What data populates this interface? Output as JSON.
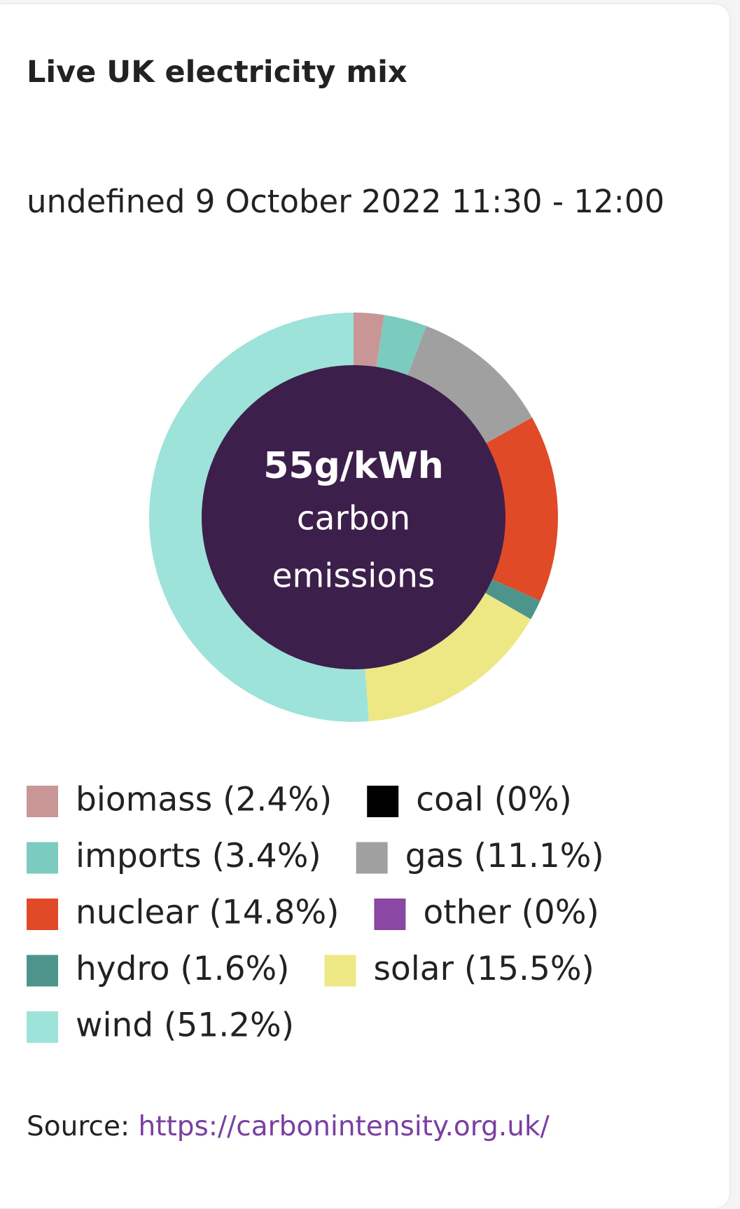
{
  "chart_data": {
    "type": "donut",
    "title": "Live UK electricity mix",
    "subtitle": "undefined 9 October 2022 11:30 - 12:00",
    "categories": [
      "biomass (2.4%)",
      "coal (0%)",
      "imports (3.4%)",
      "gas (11.1%)",
      "nuclear (14.8%)",
      "other (0%)",
      "hydro (1.6%)",
      "solar (15.5%)",
      "wind (51.2%)"
    ],
    "values": [
      2.4,
      0,
      3.4,
      11.1,
      14.8,
      0,
      1.6,
      15.5,
      51.2
    ],
    "colors": [
      "#c99696",
      "#000000",
      "#7ccbbf",
      "#a0a0a0",
      "#e04a27",
      "#8a47a3",
      "#4d958b",
      "#ede884",
      "#9de3da"
    ],
    "center_color": "#3d1f4b",
    "center_text": [
      "55g/kWh",
      "carbon",
      "emissions"
    ],
    "source_label": "Source:",
    "source_url": "https://carbonintensity.org.uk/"
  }
}
